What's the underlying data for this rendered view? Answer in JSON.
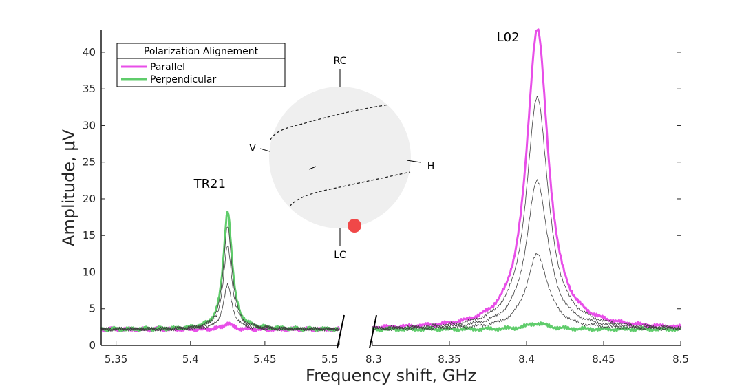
{
  "chart_data": {
    "type": "line",
    "xlabel": "Frequency shift, GHz",
    "ylabel": "Amplitude, μV",
    "ylim": [
      0,
      43
    ],
    "yticks": [
      0,
      5,
      10,
      15,
      20,
      25,
      30,
      35,
      40
    ],
    "x_break": true,
    "segments": [
      {
        "xlim": [
          5.34,
          5.5
        ],
        "xticks": [
          5.35,
          5.4,
          5.45,
          5.5
        ]
      },
      {
        "xlim": [
          8.3,
          8.5
        ],
        "xticks": [
          8.3,
          8.35,
          8.4,
          8.45,
          8.5
        ]
      }
    ],
    "legend": {
      "title": "Polarization Alignement",
      "position": "top-left",
      "entries": [
        {
          "name": "Parallel",
          "color": "#e84fe8"
        },
        {
          "name": "Perpendicular",
          "color": "#5fcc6b"
        }
      ]
    },
    "annotations": [
      {
        "text": "TR21",
        "x": 5.413,
        "y": 21.5
      },
      {
        "text": "L02",
        "x": 8.388,
        "y": 41.5
      }
    ],
    "series": [
      {
        "name": "Parallel",
        "color": "#e84fe8",
        "width": 3,
        "baseline": 2.2,
        "peaks": [
          {
            "center": 5.425,
            "amp": 0.8,
            "hw": 0.0035
          },
          {
            "center": 8.407,
            "amp": 41.0,
            "hw": 0.0085
          }
        ]
      },
      {
        "name": "Perpendicular",
        "color": "#5fcc6b",
        "width": 3,
        "baseline": 2.2,
        "peaks": [
          {
            "center": 5.425,
            "amp": 16.2,
            "hw": 0.0035
          },
          {
            "center": 8.407,
            "amp": 0.8,
            "hw": 0.0085
          }
        ]
      },
      {
        "name": "",
        "color": "#404040",
        "width": 0.8,
        "baseline": 2.2,
        "peaks": [
          {
            "center": 5.425,
            "amp": 14.2,
            "hw": 0.0035
          },
          {
            "center": 8.407,
            "amp": 31.8,
            "hw": 0.0085
          }
        ]
      },
      {
        "name": "",
        "color": "#404040",
        "width": 0.8,
        "baseline": 2.2,
        "peaks": [
          {
            "center": 5.425,
            "amp": 11.4,
            "hw": 0.0035
          },
          {
            "center": 8.407,
            "amp": 20.3,
            "hw": 0.0085
          }
        ]
      },
      {
        "name": "",
        "color": "#404040",
        "width": 0.8,
        "baseline": 2.2,
        "peaks": [
          {
            "center": 5.425,
            "amp": 6.0,
            "hw": 0.0035
          },
          {
            "center": 8.407,
            "amp": 10.2,
            "hw": 0.0085
          }
        ]
      }
    ],
    "grid": false
  },
  "inset": {
    "labels": {
      "top": "RC",
      "bottom": "LC",
      "left": "V",
      "right": "H"
    },
    "sphere_color": "#efefef",
    "marker_color": "#f04848"
  }
}
